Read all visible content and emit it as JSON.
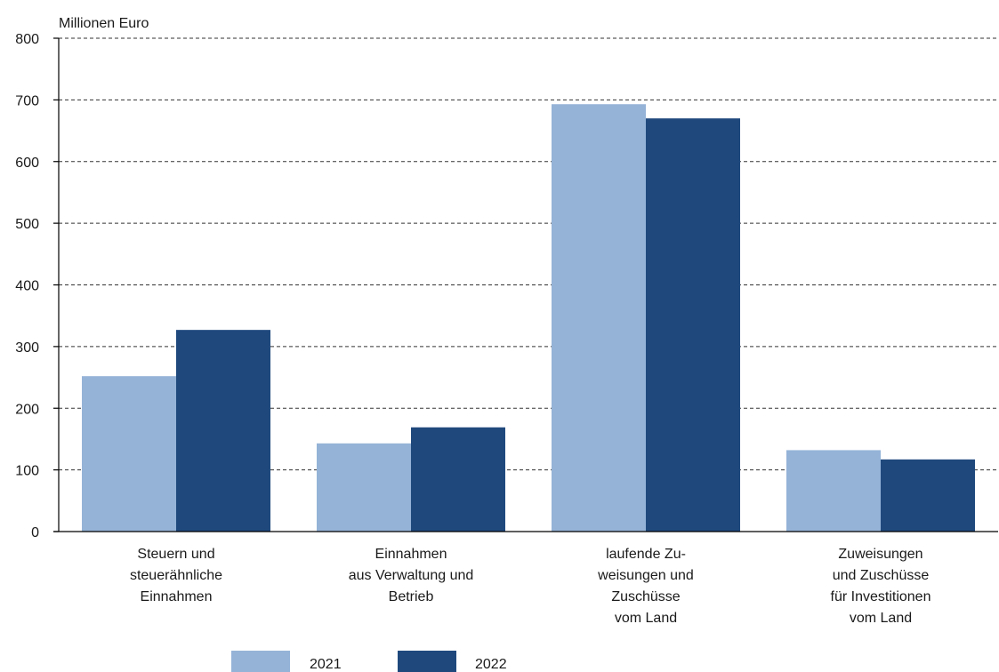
{
  "chart_data": {
    "type": "bar",
    "ylabel": "Millionen Euro",
    "ylim": [
      0,
      800
    ],
    "yticks": [
      0,
      100,
      200,
      300,
      400,
      500,
      600,
      700,
      800
    ],
    "grid": true,
    "legend_position": "bottom-left",
    "categories": [
      [
        "Steuern und",
        "steuerähnliche",
        "Einnahmen"
      ],
      [
        "Einnahmen",
        "aus Verwaltung und",
        "Betrieb"
      ],
      [
        "laufende Zu-",
        "weisungen und",
        "Zuschüsse",
        "vom Land"
      ],
      [
        "Zuweisungen",
        "und Zuschüsse",
        "für Investitionen",
        "vom Land"
      ]
    ],
    "series": [
      {
        "name": "2021",
        "color": "#95b3d7",
        "values": [
          252,
          143,
          693,
          132
        ]
      },
      {
        "name": "2022",
        "color": "#1f497d",
        "values": [
          327,
          169,
          670,
          117
        ]
      }
    ]
  }
}
